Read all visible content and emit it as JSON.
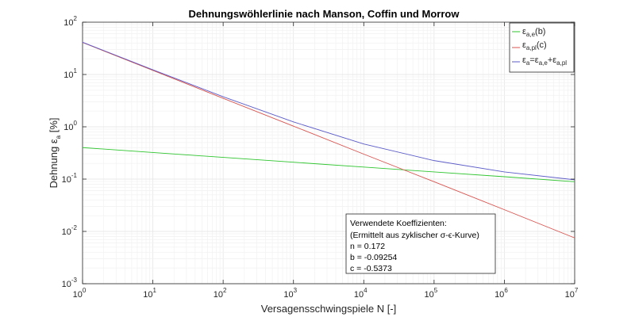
{
  "chart_data": {
    "type": "line",
    "title": "Dehnungswöhlerlinie nach Manson, Coffin und Morrow",
    "xlabel": "Versagensschwingspiele N   [-]",
    "ylabel": {
      "prefix": "Dehnung ε",
      "sub": "a",
      "suffix": " [%]"
    },
    "xscale": "log",
    "yscale": "log",
    "xlim": [
      1,
      10000000
    ],
    "ylim": [
      0.001,
      100
    ],
    "x_ticks": [
      {
        "base": "10",
        "exp": "0",
        "value": 1
      },
      {
        "base": "10",
        "exp": "1",
        "value": 10
      },
      {
        "base": "10",
        "exp": "2",
        "value": 100
      },
      {
        "base": "10",
        "exp": "3",
        "value": 1000
      },
      {
        "base": "10",
        "exp": "4",
        "value": 10000
      },
      {
        "base": "10",
        "exp": "5",
        "value": 100000
      },
      {
        "base": "10",
        "exp": "6",
        "value": 1000000
      },
      {
        "base": "10",
        "exp": "7",
        "value": 10000000
      }
    ],
    "y_ticks": [
      {
        "base": "10",
        "exp": "-3",
        "value": 0.001
      },
      {
        "base": "10",
        "exp": "-2",
        "value": 0.01
      },
      {
        "base": "10",
        "exp": "-1",
        "value": 0.1
      },
      {
        "base": "10",
        "exp": "0",
        "value": 1
      },
      {
        "base": "10",
        "exp": "1",
        "value": 10
      },
      {
        "base": "10",
        "exp": "2",
        "value": 100
      }
    ],
    "grid": true,
    "minor_grid": true,
    "legend_placement": "top-right",
    "series": [
      {
        "key": "elastic",
        "legend": {
          "main": "ε",
          "sub": "a,e",
          "after": "(b)"
        },
        "color": "#2fc52f",
        "x": [
          1,
          10,
          100,
          1000,
          10000,
          100000,
          1000000,
          10000000
        ],
        "y": [
          0.4,
          0.323,
          0.26,
          0.21,
          0.17,
          0.137,
          0.111,
          0.089
        ]
      },
      {
        "key": "plastic",
        "legend": {
          "main": "ε",
          "sub": "a,pl",
          "after": "(c)"
        },
        "color": "#d9534f",
        "x": [
          1,
          10,
          100,
          1000,
          10000,
          100000,
          1000000,
          10000000
        ],
        "y": [
          41.0,
          12.0,
          3.5,
          1.03,
          0.3,
          0.089,
          0.026,
          0.0075
        ]
      },
      {
        "key": "total",
        "legend": {
          "main": "ε",
          "sub": "a",
          "after": "=ε",
          "sub2": "a,e",
          "after2": "+ε",
          "sub3": "a,pl"
        },
        "color": "#5b5bc8",
        "x": [
          1,
          10,
          100,
          1000,
          10000,
          100000,
          1000000,
          10000000
        ],
        "y": [
          41.4,
          12.3,
          3.76,
          1.24,
          0.47,
          0.226,
          0.137,
          0.097
        ]
      }
    ],
    "annotation": {
      "lines": [
        "Verwendete Koeffizienten:",
        "(Ermittelt aus zyklischer σ-ϵ-Kurve)",
        "n = 0.172",
        "b = -0.09254",
        "c = -0.5373"
      ]
    }
  }
}
